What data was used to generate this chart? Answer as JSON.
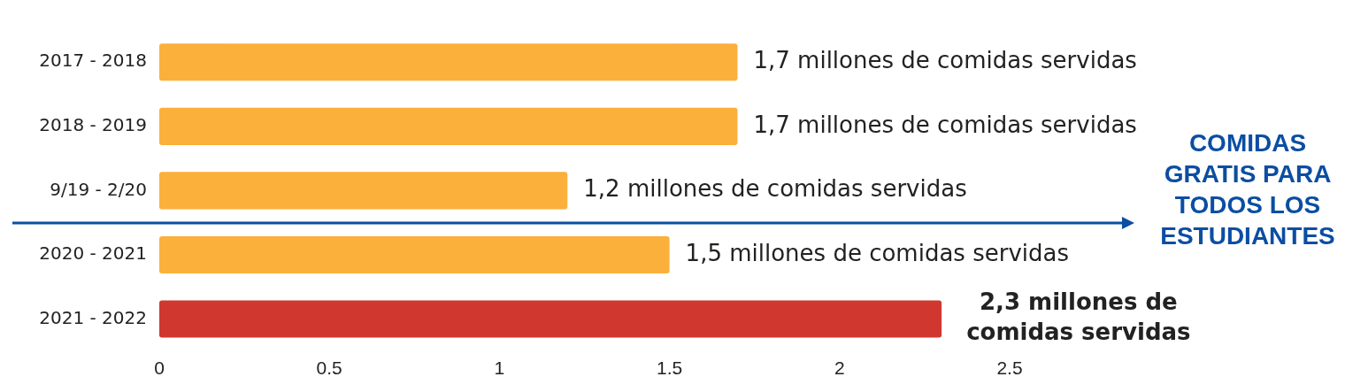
{
  "chart_data": {
    "type": "bar",
    "orientation": "horizontal",
    "categories": [
      "2017 - 2018",
      "2018 - 2019",
      "9/19 - 2/20",
      "2020 - 2021",
      "2021 - 2022"
    ],
    "values": [
      1.7,
      1.7,
      1.2,
      1.5,
      2.3
    ],
    "colors": [
      "#fbb03b",
      "#fbb03b",
      "#fbb03b",
      "#fbb03b",
      "#d0382f"
    ],
    "value_labels": [
      "1,7 millones de comidas servidas",
      "1,7 millones de comidas servidas",
      "1,2 millones de comidas servidas",
      "1,5 millones de comidas servidas",
      "2,3 millones de comidas servidas"
    ],
    "xlim": [
      0,
      2.5
    ],
    "xticks": [
      0,
      0.5,
      1,
      1.5,
      2,
      2.5
    ],
    "grid": false,
    "legend": false,
    "annotations": [
      "COMIDAS\nGRATIS PARA\nTODOS LOS\nESTUDIANTES"
    ]
  }
}
